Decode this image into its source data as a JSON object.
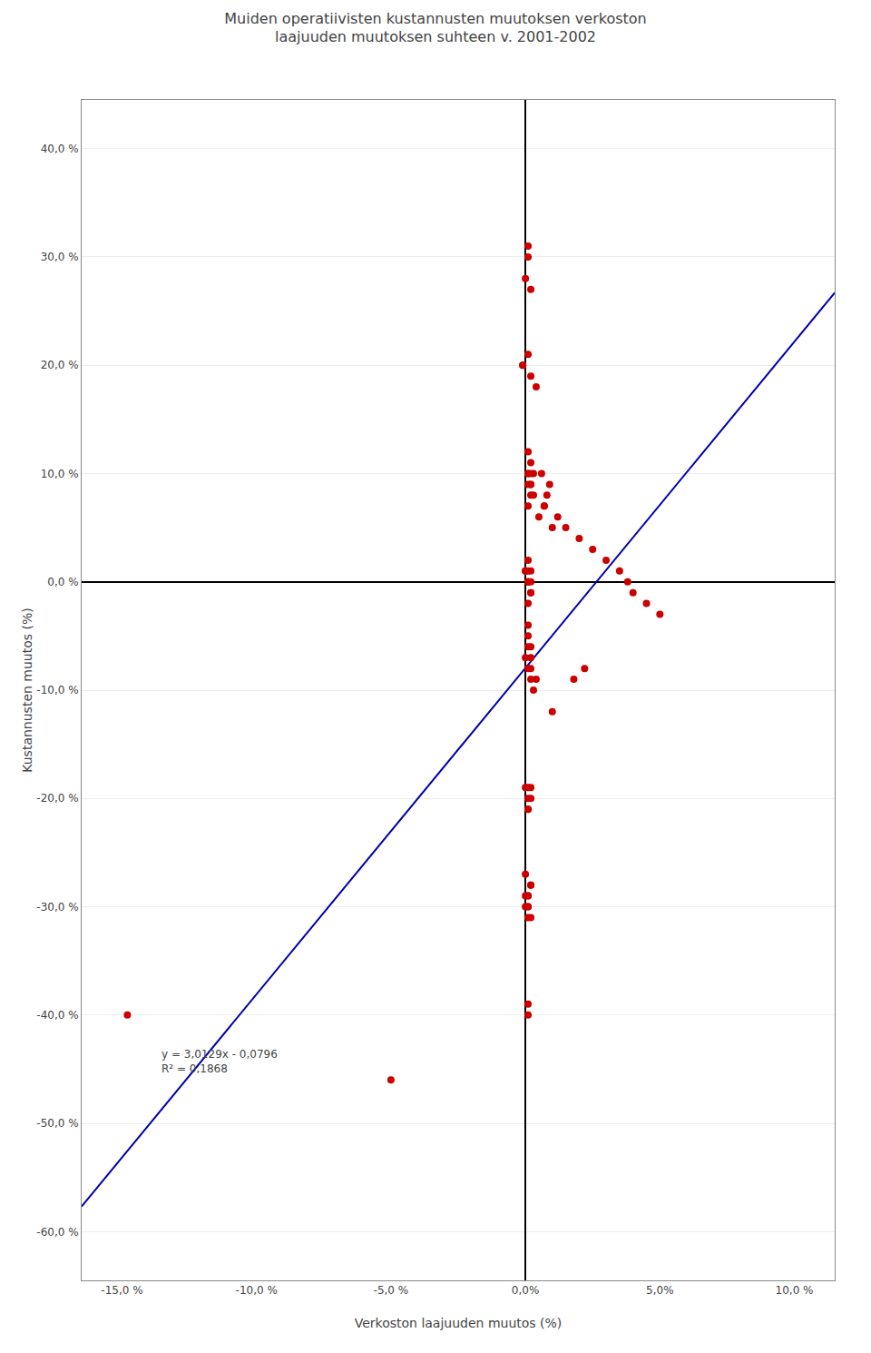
{
  "chart_data": {
    "type": "scatter",
    "title": "Muiden operatiivisten kustannusten muutoksen verkoston\nlaajuuden muutoksen suhteen v. 2001-2002",
    "xlabel": "Verkoston laajuuden muutos (%)",
    "ylabel": "Kustannusten muutos (%)",
    "xlim": [
      -0.165,
      0.115
    ],
    "ylim": [
      -0.645,
      0.445
    ],
    "xticks": [
      {
        "value": -0.15,
        "label": "-15,0 %"
      },
      {
        "value": -0.1,
        "label": "-10,0 %"
      },
      {
        "value": -0.05,
        "label": "-5,0 %"
      },
      {
        "value": 0.0,
        "label": "0,0%"
      },
      {
        "value": 0.05,
        "label": "5,0%"
      },
      {
        "value": 0.1,
        "label": "10,0 %"
      }
    ],
    "yticks": [
      {
        "value": -0.6,
        "label": "-60,0 %"
      },
      {
        "value": -0.5,
        "label": "-50,0 %"
      },
      {
        "value": -0.4,
        "label": "-40,0 %"
      },
      {
        "value": -0.3,
        "label": "-30,0 %"
      },
      {
        "value": -0.2,
        "label": "-20,0 %"
      },
      {
        "value": -0.1,
        "label": "-10,0 %"
      },
      {
        "value": 0.0,
        "label": "0,0 %"
      },
      {
        "value": 0.1,
        "label": "10,0 %"
      },
      {
        "value": 0.2,
        "label": "20,0 %"
      },
      {
        "value": 0.3,
        "label": "30,0 %"
      },
      {
        "value": 0.4,
        "label": "40,0 %"
      }
    ],
    "grid": "y",
    "annotations": [
      "y = 3,0129x - 0,0796",
      "R² = 0,1868"
    ],
    "series": [
      {
        "type": "scatter",
        "marker": "circle",
        "color": "#cc0000",
        "x": [
          0.001,
          0.0,
          0.001,
          0.002,
          0.001,
          -0.001,
          -0.001,
          0.002,
          0.004,
          0.001,
          0.002,
          0.001,
          0.003,
          0.002,
          0.001,
          0.003,
          0.002,
          0.001,
          0.002,
          0.005,
          0.007,
          0.01,
          0.012,
          0.008,
          0.009,
          0.006,
          0.007,
          0.001,
          0.002,
          0.0,
          0.001,
          0.002,
          0.001,
          0.0,
          0.001,
          0.002,
          0.001,
          0.002,
          0.001,
          0.001,
          0.002,
          0.001,
          0.002,
          0.001,
          0.002,
          0.0,
          0.001,
          0.003,
          0.004,
          0.002,
          0.001,
          0.002,
          0.001,
          0.0,
          0.001,
          0.002,
          0.001,
          0.002,
          0.001,
          0.0,
          0.001,
          0.0,
          0.001,
          0.002,
          0.001,
          0.0,
          0.001,
          0.002,
          0.001,
          0.001,
          0.015,
          0.02,
          0.025,
          0.03,
          0.035,
          0.038,
          0.04,
          0.045,
          0.05,
          -0.148,
          -0.05,
          0.01,
          0.018,
          0.022,
          0.001,
          0.002
        ],
        "values": [
          0.3,
          0.28,
          0.31,
          0.27,
          0.21,
          0.2,
          0.2,
          0.19,
          0.18,
          0.12,
          0.11,
          0.1,
          0.1,
          0.09,
          0.1,
          0.08,
          0.09,
          0.07,
          0.08,
          0.06,
          0.07,
          0.05,
          0.06,
          0.08,
          0.09,
          0.1,
          0.07,
          0.01,
          0.0,
          0.01,
          0.0,
          -0.01,
          0.0,
          0.01,
          0.02,
          -0.01,
          0.0,
          0.01,
          -0.02,
          -0.05,
          -0.06,
          -0.04,
          -0.07,
          -0.08,
          -0.09,
          -0.07,
          -0.06,
          -0.1,
          -0.09,
          -0.08,
          -0.19,
          -0.2,
          -0.21,
          -0.19,
          -0.2,
          -0.19,
          -0.21,
          -0.28,
          -0.29,
          -0.27,
          -0.29,
          -0.3,
          -0.31,
          -0.28,
          -0.3,
          -0.29,
          -0.3,
          -0.31,
          -0.4,
          -0.39,
          0.05,
          0.04,
          0.03,
          0.02,
          0.01,
          0.0,
          -0.01,
          -0.02,
          -0.03,
          -0.4,
          -0.46,
          -0.12,
          -0.09,
          -0.08,
          0.09,
          0.1
        ]
      },
      {
        "type": "line",
        "line_style": "solid",
        "color": "#0000aa",
        "x": [
          -0.165,
          0.115
        ],
        "values": [
          -0.5767285,
          0.2668835
        ]
      }
    ]
  }
}
